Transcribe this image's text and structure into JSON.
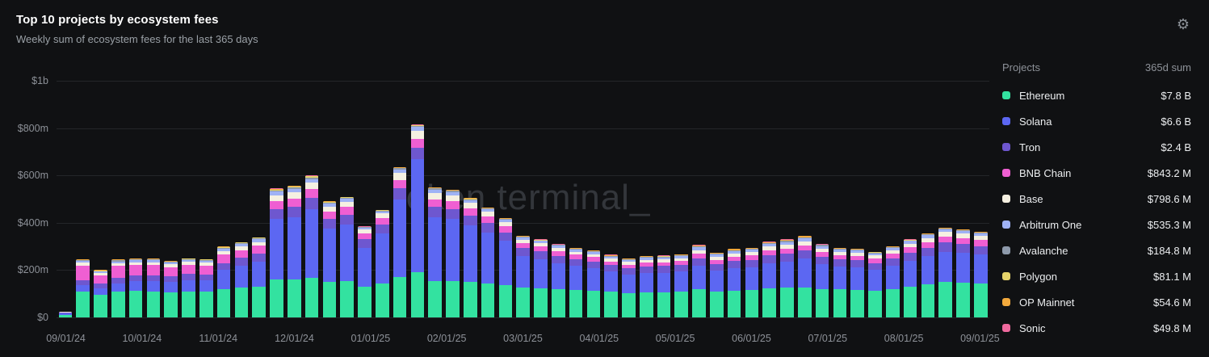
{
  "header": {
    "title": "Top 10 projects by ecosystem fees",
    "subtitle": "Weekly sum of ecosystem fees for the last 365 days"
  },
  "watermark": "token terminal_",
  "legend": {
    "col_project": "Projects",
    "col_sum": "365d sum",
    "rows": [
      {
        "name": "Ethereum",
        "sum": "$7.8 B"
      },
      {
        "name": "Solana",
        "sum": "$6.6 B"
      },
      {
        "name": "Tron",
        "sum": "$2.4 B"
      },
      {
        "name": "BNB Chain",
        "sum": "$843.2 M"
      },
      {
        "name": "Base",
        "sum": "$798.6 M"
      },
      {
        "name": "Arbitrum One",
        "sum": "$535.3 M"
      },
      {
        "name": "Avalanche",
        "sum": "$184.8 M"
      },
      {
        "name": "Polygon",
        "sum": "$81.1 M"
      },
      {
        "name": "OP Mainnet",
        "sum": "$54.6 M"
      },
      {
        "name": "Sonic",
        "sum": "$49.8 M"
      }
    ]
  },
  "chart_data": {
    "type": "bar",
    "stacked": true,
    "title": "Top 10 projects by ecosystem fees",
    "subtitle": "Weekly sum of ecosystem fees for the last 365 days",
    "x_unit": "week",
    "y_unit": "USD millions per week",
    "ylim": [
      0,
      1000
    ],
    "grid": true,
    "legend_position": "right",
    "x_tick_labels": [
      "09/01/24",
      "10/01/24",
      "11/01/24",
      "12/01/24",
      "01/01/25",
      "02/01/25",
      "03/01/25",
      "04/01/25",
      "05/01/25",
      "06/01/25",
      "07/01/25",
      "08/01/25",
      "09/01/25"
    ],
    "y_ticks": [
      {
        "value": 0,
        "label": "$0"
      },
      {
        "value": 200,
        "label": "$200m"
      },
      {
        "value": 400,
        "label": "$400m"
      },
      {
        "value": 600,
        "label": "$600m"
      },
      {
        "value": 800,
        "label": "$800m"
      },
      {
        "value": 1000,
        "label": "$1b"
      }
    ],
    "series": [
      {
        "name": "Ethereum",
        "color": "#33e2a0",
        "values": [
          12,
          108,
          95,
          110,
          112,
          110,
          105,
          110,
          108,
          120,
          125,
          130,
          160,
          162,
          168,
          150,
          155,
          130,
          145,
          170,
          190,
          155,
          152,
          150,
          145,
          138,
          125,
          122,
          118,
          115,
          112,
          108,
          102,
          105,
          106,
          108,
          118,
          110,
          114,
          116,
          122,
          125,
          128,
          120,
          118,
          116,
          112,
          120,
          130,
          140,
          150,
          148,
          145
        ]
      },
      {
        "name": "Solana",
        "color": "#5c67f2",
        "values": [
          5,
          28,
          28,
          35,
          40,
          45,
          45,
          48,
          48,
          80,
          95,
          105,
          255,
          260,
          290,
          225,
          238,
          165,
          210,
          330,
          480,
          270,
          265,
          240,
          215,
          185,
          135,
          125,
          112,
          102,
          96,
          85,
          78,
          82,
          83,
          85,
          102,
          88,
          95,
          97,
          108,
          112,
          120,
          104,
          96,
          94,
          88,
          98,
          110,
          118,
          128,
          125,
          121
        ]
      },
      {
        "name": "Tron",
        "color": "#6e57cf",
        "values": [
          3,
          22,
          20,
          22,
          24,
          24,
          24,
          25,
          25,
          30,
          32,
          35,
          42,
          44,
          46,
          40,
          41,
          35,
          38,
          45,
          48,
          42,
          42,
          40,
          38,
          36,
          32,
          32,
          30,
          29,
          29,
          28,
          27,
          28,
          28,
          28,
          30,
          29,
          30,
          30,
          32,
          33,
          34,
          32,
          31,
          31,
          30,
          31,
          34,
          36,
          38,
          37,
          36
        ]
      },
      {
        "name": "BNB Chain",
        "color": "#ef5fd2",
        "values": [
          2,
          62,
          35,
          50,
          45,
          42,
          38,
          40,
          38,
          35,
          32,
          33,
          35,
          36,
          38,
          32,
          33,
          25,
          28,
          35,
          38,
          32,
          31,
          30,
          28,
          26,
          22,
          21,
          20,
          19,
          18,
          16,
          15,
          16,
          16,
          17,
          20,
          17,
          18,
          19,
          21,
          22,
          23,
          20,
          19,
          19,
          18,
          20,
          22,
          24,
          26,
          25,
          25
        ]
      },
      {
        "name": "Base",
        "color": "#f5f0e1",
        "values": [
          1,
          12,
          10,
          12,
          12,
          12,
          12,
          12,
          12,
          15,
          15,
          16,
          25,
          26,
          28,
          22,
          22,
          16,
          18,
          30,
          32,
          28,
          27,
          24,
          20,
          18,
          15,
          14,
          14,
          13,
          13,
          12,
          12,
          12,
          12,
          13,
          15,
          13,
          14,
          14,
          16,
          16,
          17,
          15,
          14,
          14,
          14,
          14,
          16,
          18,
          19,
          19,
          18
        ]
      },
      {
        "name": "Arbitrum One",
        "color": "#9fb2f5",
        "values": [
          1,
          6,
          5,
          8,
          8,
          8,
          7,
          8,
          8,
          10,
          11,
          11,
          14,
          14,
          15,
          12,
          12,
          8,
          10,
          15,
          16,
          13,
          13,
          12,
          11,
          10,
          9,
          9,
          9,
          9,
          9,
          8,
          8,
          9,
          9,
          9,
          11,
          10,
          10,
          10,
          11,
          11,
          12,
          11,
          10,
          9,
          9,
          10,
          11,
          12,
          12,
          11,
          11
        ]
      },
      {
        "name": "Avalanche",
        "color": "#8e9aab",
        "values": [
          1,
          3,
          3,
          4,
          4,
          4,
          4,
          4,
          4,
          4,
          4,
          4,
          6,
          6,
          7,
          5,
          5,
          3,
          3,
          5,
          6,
          5,
          5,
          4,
          4,
          3,
          3,
          3,
          3,
          3,
          3,
          3,
          3,
          3,
          3,
          3,
          3,
          3,
          3,
          3,
          4,
          4,
          4,
          4,
          3,
          3,
          3,
          3,
          3,
          3,
          3,
          3,
          3
        ]
      },
      {
        "name": "Polygon",
        "color": "#e6d36a",
        "values": [
          0,
          2,
          2,
          2,
          2,
          2,
          2,
          2,
          2,
          3,
          3,
          3,
          4,
          4,
          4,
          2,
          2,
          1,
          1,
          2,
          2,
          2,
          2,
          2,
          1,
          1,
          1,
          1,
          1,
          1,
          1,
          1,
          1,
          1,
          1,
          1,
          1,
          1,
          1,
          1,
          1,
          1,
          1,
          1,
          1,
          1,
          1,
          1,
          1,
          1,
          1,
          1,
          1
        ]
      },
      {
        "name": "OP Mainnet",
        "color": "#f2a93c",
        "values": [
          0,
          2,
          2,
          2,
          2,
          2,
          2,
          2,
          2,
          2,
          2,
          2,
          3,
          3,
          3,
          2,
          1,
          1,
          1,
          2,
          2,
          2,
          2,
          2,
          2,
          2,
          2,
          2,
          2,
          3,
          3,
          3,
          3,
          3,
          3,
          3,
          4,
          3,
          4,
          4,
          4,
          5,
          5,
          2,
          2,
          2,
          2,
          2,
          2,
          2,
          2,
          2,
          1
        ]
      },
      {
        "name": "Sonic",
        "color": "#f06a9e",
        "values": [
          0,
          0,
          0,
          0,
          0,
          0,
          0,
          0,
          0,
          0,
          0,
          0,
          1,
          1,
          1,
          1,
          1,
          1,
          1,
          1,
          1,
          1,
          1,
          1,
          1,
          1,
          1,
          1,
          1,
          1,
          1,
          1,
          1,
          1,
          1,
          1,
          2,
          1,
          1,
          1,
          2,
          2,
          2,
          2,
          1,
          1,
          1,
          1,
          1,
          1,
          1,
          1,
          1
        ]
      }
    ]
  }
}
